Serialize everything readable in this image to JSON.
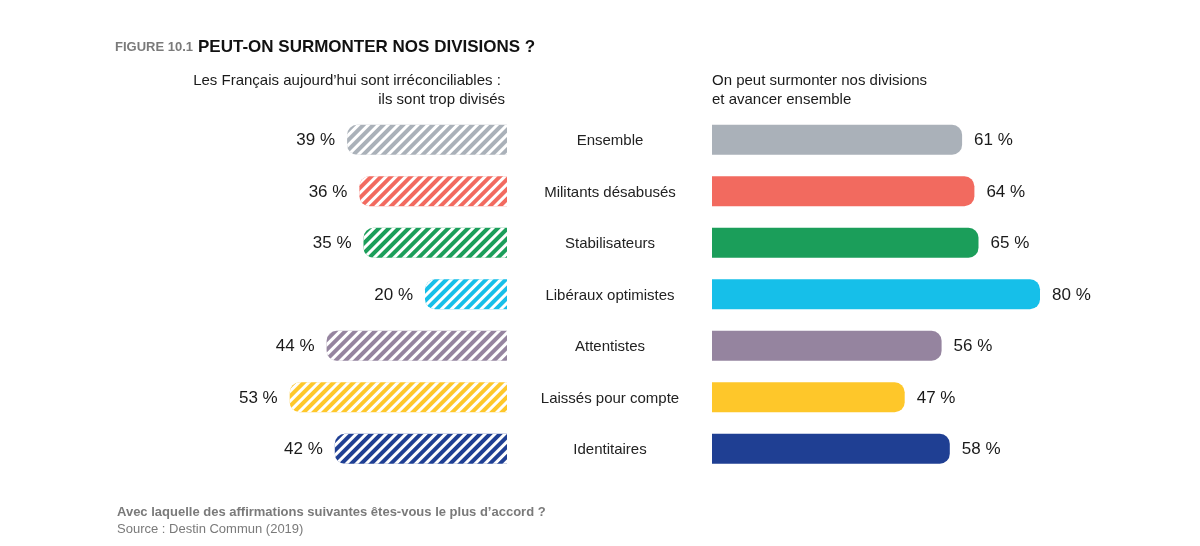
{
  "chart_data": [
    {
      "type": "bar",
      "orientation": "horizontal",
      "title": "PEUT-ON SURMONTER NOS DIVISIONS ?",
      "annotations": [
        "FIGURE 10.1",
        "Avec laquelle des affirmations suivantes êtes-vous le plus d’accord ?",
        "Source : Destin Commun (2019)"
      ],
      "categories": [
        "Ensemble",
        "Militants désabusés",
        "Stabilisateurs",
        "Libéraux optimistes",
        "Attentistes",
        "Laissés pour compte",
        "Identitaires"
      ],
      "tick_labels": false,
      "series": [
        {
          "name": "Les Français aujourd’hui sont irréconciliables : ils sont trop divisés",
          "colors": [
            "#aab1b9",
            "#f26a5f",
            "#1b9e5a",
            "#16bfe9",
            "#95849f",
            "#fec72a",
            "#1f3f93"
          ],
          "values": [
            39,
            36,
            35,
            20,
            44,
            53,
            42
          ],
          "value_labels": [
            "39 %",
            "36 %",
            "35 %",
            "20 %",
            "44 %",
            "53 %",
            "42 %"
          ]
        }
      ]
    },
    {
      "type": "bar",
      "orientation": "horizontal",
      "categories": [
        "Ensemble",
        "Militants désabusés",
        "Stabilisateurs",
        "Libéraux optimistes",
        "Attentistes",
        "Laissés pour compte",
        "Identitaires"
      ],
      "series": [
        {
          "name": "On peut surmonter nos divisions et avancer ensemble",
          "colors": [
            "#aab1b9",
            "#f26a5f",
            "#1b9e5a",
            "#16bfe9",
            "#95849f",
            "#fec72a",
            "#1f3f93"
          ],
          "values": [
            61,
            64,
            65,
            80,
            56,
            47,
            58
          ],
          "value_labels": [
            "61 %",
            "64 %",
            "65 %",
            "80 %",
            "56 %",
            "47 %",
            "58 %"
          ]
        }
      ]
    }
  ]
}
